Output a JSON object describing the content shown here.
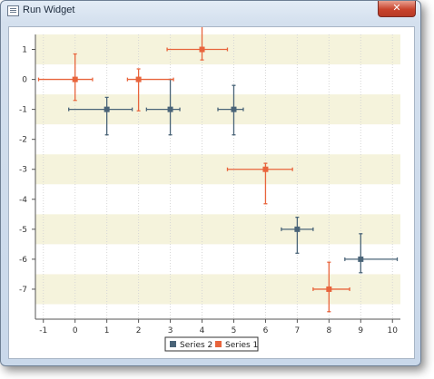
{
  "window": {
    "title": "Run Widget",
    "close_glyph": "✕"
  },
  "chart_data": {
    "type": "scatter",
    "title": "",
    "xlabel": "",
    "ylabel": "",
    "xlim": [
      -1.25,
      10.25
    ],
    "ylim": [
      -8,
      1.5
    ],
    "xticks": [
      -1,
      0,
      1,
      2,
      3,
      4,
      5,
      6,
      7,
      8,
      9,
      10
    ],
    "yticks": [
      1,
      0,
      -1,
      -2,
      -3,
      -4,
      -5,
      -6,
      -7
    ],
    "grid": {
      "horizontal_bands": true,
      "vertical_dotted": true
    },
    "legend_position": "bottom-center",
    "series": [
      {
        "name": "Series 2",
        "color": "#4a6478",
        "points": [
          {
            "x": 1,
            "y": -1,
            "xerr": [
              1.2,
              0.8
            ],
            "yerr": [
              0.4,
              0.85
            ]
          },
          {
            "x": 3,
            "y": -1,
            "xerr": [
              0.75,
              0.3
            ],
            "yerr": [
              1.0,
              0.85
            ]
          },
          {
            "x": 5,
            "y": -1,
            "xerr": [
              0.5,
              0.3
            ],
            "yerr": [
              0.8,
              0.85
            ]
          },
          {
            "x": 7,
            "y": -5,
            "xerr": [
              0.5,
              0.5
            ],
            "yerr": [
              0.4,
              0.8
            ]
          },
          {
            "x": 9,
            "y": -6,
            "xerr": [
              0.5,
              1.15
            ],
            "yerr": [
              0.85,
              0.45
            ]
          }
        ]
      },
      {
        "name": "Series 1",
        "color": "#e8643c",
        "points": [
          {
            "x": 0,
            "y": 0,
            "xerr": [
              1.15,
              0.55
            ],
            "yerr": [
              0.85,
              0.7
            ]
          },
          {
            "x": 2,
            "y": 0,
            "xerr": [
              0.35,
              1.1
            ],
            "yerr": [
              0.35,
              1.05
            ]
          },
          {
            "x": 4,
            "y": 1,
            "xerr": [
              1.1,
              0.8
            ],
            "yerr": [
              1.0,
              0.35
            ]
          },
          {
            "x": 6,
            "y": -3,
            "xerr": [
              1.2,
              0.85
            ],
            "yerr": [
              0.2,
              1.15
            ]
          },
          {
            "x": 8,
            "y": -7,
            "xerr": [
              0.5,
              0.65
            ],
            "yerr": [
              0.9,
              0.75
            ]
          }
        ]
      }
    ],
    "legend_order": [
      "Series 2",
      "Series 1"
    ]
  }
}
